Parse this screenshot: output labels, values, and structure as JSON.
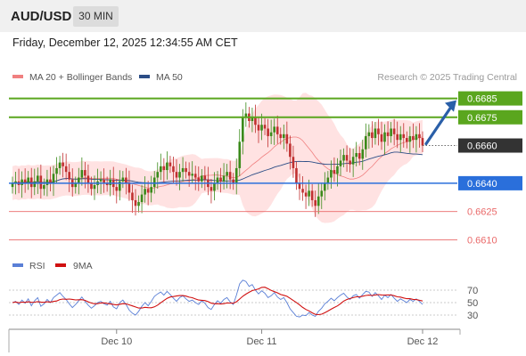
{
  "header": {
    "symbol": "AUD/USD",
    "timeframe": "30 MIN"
  },
  "timestamp": "Friday, December 12, 2025 12:34:55 AM CET",
  "legend": {
    "ma20_bb": "MA 20 + Bollinger Bands",
    "ma50": "MA 50",
    "rsi": "RSI",
    "rsi_ma": "9MA"
  },
  "credit": "Research © 2025 Trading Central",
  "colors": {
    "resistance": "#5aa61e",
    "support": "#2a6fdb",
    "minor": "#ea6a6a",
    "ma20": "#f08080",
    "ma50": "#2c4d86",
    "band_fill": "#ffd8d8",
    "bull": "#3a8a1a",
    "bear": "#c03030",
    "rsi": "#5a7fd6",
    "rsi_ma": "#d01010",
    "arrow": "#2a5fa8",
    "current": "#333333"
  },
  "chart_data": [
    {
      "type": "candlestick",
      "title": "AUD/USD",
      "ylim": [
        0.6605,
        0.669
      ],
      "x_ticks": [
        "Dec 10",
        "Dec 11",
        "Dec 12"
      ],
      "levels": [
        {
          "label": "0.6685",
          "value": 0.6685,
          "kind": "resistance"
        },
        {
          "label": "0.6675",
          "value": 0.6675,
          "kind": "resistance"
        },
        {
          "label": "0.6660",
          "value": 0.666,
          "kind": "current"
        },
        {
          "label": "0.6640",
          "value": 0.664,
          "kind": "support"
        },
        {
          "label": "0.6625",
          "value": 0.6625,
          "kind": "minor"
        },
        {
          "label": "0.6610",
          "value": 0.661,
          "kind": "minor"
        }
      ],
      "close": [
        0.664,
        0.6641,
        0.6639,
        0.6642,
        0.664,
        0.6643,
        0.6638,
        0.6641,
        0.6644,
        0.6637,
        0.6639,
        0.6642,
        0.664,
        0.6645,
        0.6648,
        0.6651,
        0.6649,
        0.6646,
        0.6642,
        0.6638,
        0.664,
        0.6643,
        0.6647,
        0.6644,
        0.664,
        0.6637,
        0.6639,
        0.6641,
        0.6642,
        0.664,
        0.6639,
        0.6642,
        0.6638,
        0.6636,
        0.6641,
        0.6643,
        0.664,
        0.6635,
        0.6631,
        0.6628,
        0.663,
        0.6634,
        0.6637,
        0.6635,
        0.6638,
        0.6643,
        0.6646,
        0.6649,
        0.6647,
        0.6651,
        0.6649,
        0.6646,
        0.6643,
        0.6646,
        0.6648,
        0.6646,
        0.6644,
        0.6645,
        0.6643,
        0.6641,
        0.6644,
        0.6642,
        0.6638,
        0.6636,
        0.664,
        0.6643,
        0.6641,
        0.6644,
        0.6646,
        0.6642,
        0.664,
        0.6648,
        0.6662,
        0.6675,
        0.6677,
        0.6673,
        0.6675,
        0.6671,
        0.6668,
        0.6671,
        0.6669,
        0.6665,
        0.6667,
        0.667,
        0.6666,
        0.6664,
        0.6666,
        0.6661,
        0.6654,
        0.6648,
        0.664,
        0.6637,
        0.6635,
        0.6633,
        0.6636,
        0.6631,
        0.6628,
        0.6633,
        0.6636,
        0.664,
        0.6643,
        0.6647,
        0.6645,
        0.6649,
        0.6652,
        0.6655,
        0.6652,
        0.665,
        0.6654,
        0.6656,
        0.6653,
        0.6658,
        0.6665,
        0.6667,
        0.6664,
        0.6669,
        0.6666,
        0.6662,
        0.6667,
        0.6665,
        0.6669,
        0.6666,
        0.6663,
        0.6666,
        0.6664,
        0.6662,
        0.6665,
        0.6663,
        0.6666,
        0.6664,
        0.666
      ],
      "rsi_close": [
        50,
        52,
        47,
        54,
        49,
        56,
        45,
        53,
        58,
        44,
        48,
        55,
        50,
        58,
        62,
        66,
        60,
        55,
        48,
        42,
        47,
        53,
        59,
        52,
        46,
        41,
        45,
        50,
        52,
        48,
        46,
        52,
        43,
        40,
        50,
        54,
        47,
        38,
        33,
        30,
        36,
        44,
        50,
        45,
        52,
        60,
        64,
        67,
        62,
        68,
        63,
        57,
        52,
        58,
        61,
        56,
        52,
        54,
        50,
        47,
        53,
        49,
        42,
        39,
        47,
        53,
        49,
        55,
        58,
        51,
        47,
        62,
        80,
        86,
        84,
        76,
        79,
        70,
        64,
        69,
        65,
        58,
        61,
        66,
        59,
        55,
        58,
        50,
        40,
        34,
        28,
        27,
        30,
        29,
        34,
        30,
        28,
        36,
        41,
        48,
        52,
        57,
        53,
        58,
        62,
        65,
        59,
        55,
        61,
        63,
        57,
        63,
        68,
        67,
        60,
        66,
        61,
        55,
        62,
        58,
        63,
        57,
        52,
        56,
        53,
        50,
        55,
        52,
        56,
        52,
        47
      ],
      "rsi_ylim": [
        10,
        90
      ],
      "rsi_ticks": [
        70,
        50,
        30
      ]
    }
  ]
}
